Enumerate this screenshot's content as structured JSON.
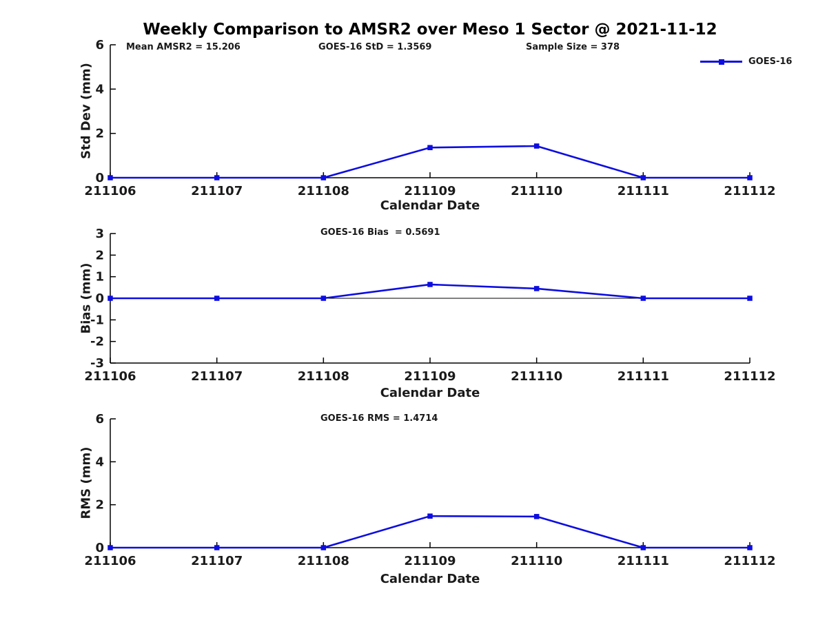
{
  "figure": {
    "title": "Weekly Comparison to AMSR2 over Meso 1 Sector @ 2021-11-12",
    "background": "#ffffff",
    "text_color": "#1a1a1a",
    "accent_color": "#0d0de0"
  },
  "chart_data": [
    {
      "type": "line",
      "x_categories": [
        "211106",
        "211107",
        "211108",
        "211109",
        "211110",
        "211111",
        "211112"
      ],
      "xlabel": "Calendar Date",
      "ylabel": "Std Dev (mm)",
      "ylim": [
        0,
        6
      ],
      "yticks": [
        0,
        2,
        4,
        6
      ],
      "grid": false,
      "legend_position": "top-right",
      "annotations": [
        "Mean AMSR2 = 15.206",
        "GOES-16 StD = 1.3569",
        "Sample Size = 378"
      ],
      "series": [
        {
          "name": "GOES-16",
          "color": "#0d0de0",
          "marker": "square",
          "values": [
            0,
            0,
            0,
            1.36,
            1.43,
            0,
            0
          ]
        }
      ]
    },
    {
      "type": "line",
      "x_categories": [
        "211106",
        "211107",
        "211108",
        "211109",
        "211110",
        "211111",
        "211112"
      ],
      "xlabel": "Calendar Date",
      "ylabel": "Bias (mm)",
      "ylim": [
        -3,
        3
      ],
      "yticks": [
        3,
        2,
        1,
        0,
        -1,
        -2,
        -3
      ],
      "grid": false,
      "zero_line": true,
      "annotations": [
        "GOES-16 Bias  = 0.5691"
      ],
      "series": [
        {
          "name": "GOES-16",
          "color": "#0d0de0",
          "marker": "square",
          "values": [
            0,
            0,
            0,
            0.64,
            0.45,
            0,
            0
          ]
        }
      ]
    },
    {
      "type": "line",
      "x_categories": [
        "211106",
        "211107",
        "211108",
        "211109",
        "211110",
        "211111",
        "211112"
      ],
      "xlabel": "Calendar Date",
      "ylabel": "RMS (mm)",
      "ylim": [
        0,
        6
      ],
      "yticks": [
        0,
        2,
        4,
        6
      ],
      "grid": false,
      "annotations": [
        "GOES-16 RMS = 1.4714"
      ],
      "series": [
        {
          "name": "GOES-16",
          "color": "#0d0de0",
          "marker": "square",
          "values": [
            0,
            0,
            0,
            1.47,
            1.45,
            0,
            0
          ]
        }
      ]
    }
  ]
}
